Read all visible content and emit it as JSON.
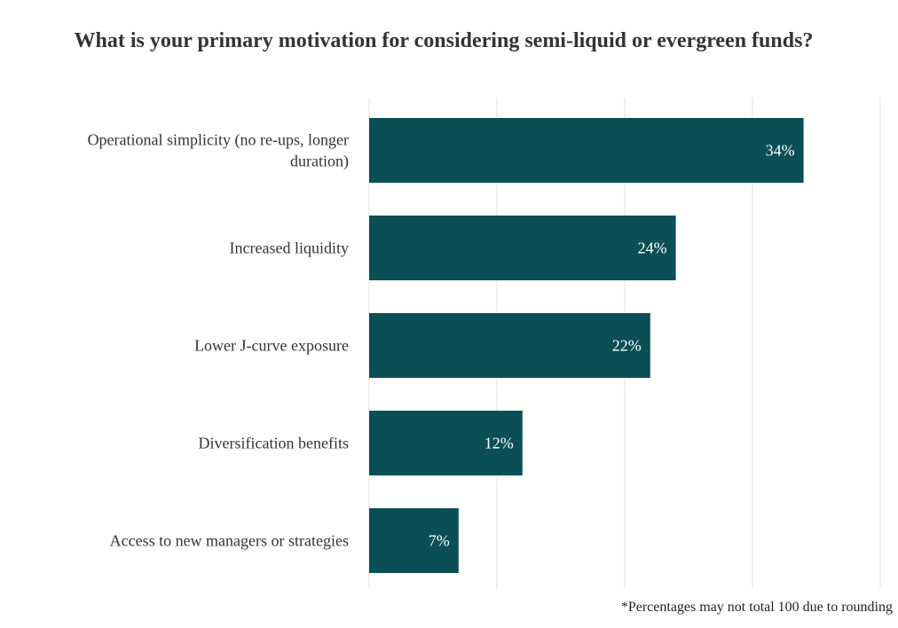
{
  "chart_data": {
    "type": "bar",
    "orientation": "horizontal",
    "title": "What is your primary motivation for considering semi-liquid or evergreen funds?",
    "categories": [
      "Operational simplicity (no re-ups, longer duration)",
      "Increased liquidity",
      "Lower J-curve exposure",
      "Diversification benefits",
      "Access to new managers or strategies"
    ],
    "category_label_lines": [
      [
        "Operational simplicity (no re-ups, longer",
        "duration)"
      ],
      [
        "Increased liquidity"
      ],
      [
        "Lower J-curve exposure"
      ],
      [
        "Diversification benefits"
      ],
      [
        "Access to new managers or strategies"
      ]
    ],
    "values": [
      34,
      24,
      22,
      12,
      7
    ],
    "data_labels": [
      "34%",
      "24%",
      "22%",
      "12%",
      "7%"
    ],
    "xlabel": "",
    "ylabel": "",
    "xlim": [
      0,
      40
    ],
    "gridlines": [
      0,
      10,
      20,
      30,
      40
    ],
    "grid": true,
    "legend": "none",
    "bar_color": "#0a4f55"
  },
  "footnote": "*Percentages may not total 100 due to rounding",
  "colors": {
    "bar": "#0a4f55",
    "grid": "#e2e2e2",
    "text": "#333333",
    "data_label": "#ffffff"
  }
}
